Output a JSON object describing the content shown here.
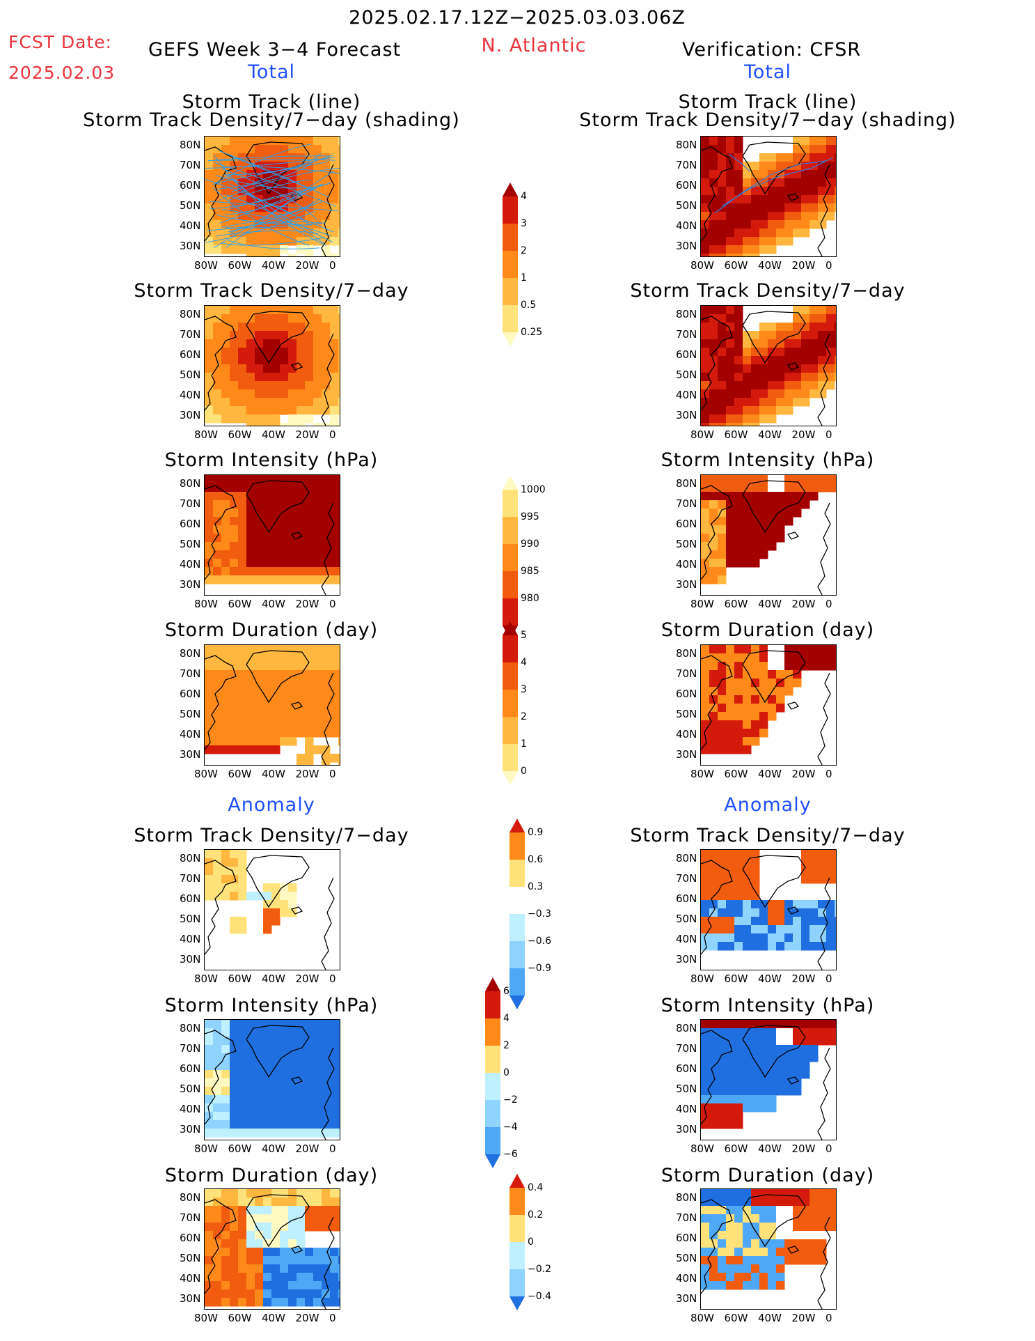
{
  "header": {
    "date_range": "2025.02.17.12Z−2025.03.03.06Z",
    "fcst_label": "FCST Date:",
    "fcst_date": "2025.02.03",
    "left_title": "GEFS Week 3−4 Forecast",
    "region": "N. Atlantic",
    "right_title": "Verification: CFSR",
    "total_label": "Total",
    "anomaly_label": "Anomaly"
  },
  "panel_titles": {
    "track_line": "Storm Track (line)",
    "track_shading": "Storm Track Density/7−day (shading)",
    "density": "Storm Track Density/7−day",
    "intensity": "Storm Intensity (hPa)",
    "duration": "Storm Duration (day)"
  },
  "axes": {
    "lat": [
      "80N",
      "70N",
      "60N",
      "50N",
      "40N",
      "30N"
    ],
    "lon": [
      "80W",
      "60W",
      "40W",
      "20W",
      "0"
    ]
  },
  "colorbars": {
    "density": [
      "4",
      "3",
      "2",
      "1",
      "0.5",
      "0.25"
    ],
    "intensity": [
      "1000",
      "995",
      "990",
      "985",
      "980"
    ],
    "duration": [
      "5",
      "4",
      "3",
      "2",
      "1",
      "0"
    ],
    "density_anom": [
      "0.9",
      "0.6",
      "0.3",
      "−0.3",
      "−0.6",
      "−0.9"
    ],
    "intensity_anom": [
      "6",
      "4",
      "2",
      "0",
      "−2",
      "−4",
      "−6"
    ],
    "duration_anom": [
      "0.4",
      "0.2",
      "0",
      "−0.2",
      "−0.4"
    ]
  },
  "colors": {
    "warm": [
      "#fff9c2",
      "#ffe27a",
      "#ffb740",
      "#ff8a1a",
      "#f25c0f",
      "#d41a0a",
      "#a30000"
    ],
    "cool": [
      "#bff0ff",
      "#8fd3ff",
      "#4ea8f5",
      "#1f6fe0"
    ]
  }
}
